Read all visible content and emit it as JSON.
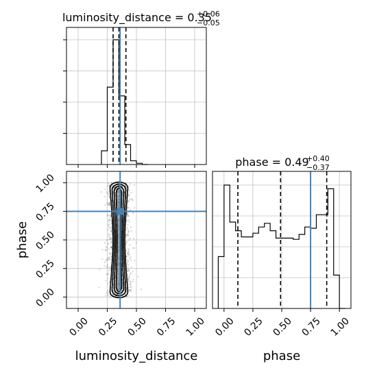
{
  "chart_data": [
    {
      "panel": "marginal-luminosity_distance",
      "type": "histogram",
      "title_param": "luminosity_distance",
      "title_value": "0.35",
      "title_plus": "+0.06",
      "title_minus": "−0.05",
      "xlim": [
        -0.1,
        1.1
      ],
      "bin_edges": [
        0.2,
        0.25,
        0.3,
        0.35,
        0.4,
        0.45,
        0.5,
        0.55,
        0.6
      ],
      "counts": [
        0.11,
        0.62,
        1.0,
        0.55,
        0.16,
        0.03,
        0.01,
        0.0
      ],
      "quantile_lines": [
        0.3,
        0.35,
        0.41
      ],
      "truth": 0.36,
      "grid": true
    },
    {
      "panel": "2d-luminosity_distance-phase",
      "type": "scatter",
      "xlabel": "luminosity_distance",
      "ylabel": "phase",
      "xlim": [
        -0.1,
        1.1
      ],
      "ylim": [
        -0.1,
        1.1
      ],
      "x_ticks": [
        "0.00",
        "0.25",
        "0.50",
        "0.75",
        "1.00"
      ],
      "y_ticks": [
        "0.00",
        "0.25",
        "0.50",
        "0.75",
        "1.00"
      ],
      "x_tick_values": [
        0,
        0.25,
        0.5,
        0.75,
        1.0
      ],
      "y_tick_values": [
        0,
        0.25,
        0.5,
        0.75,
        1.0
      ],
      "samples_center_x": 0.35,
      "samples_spread_x": 0.05,
      "truth_x": 0.36,
      "truth_y": 0.75,
      "grid": true
    },
    {
      "panel": "marginal-phase",
      "type": "histogram",
      "title_param": "phase",
      "title_value": "0.49",
      "title_plus": "+0.40",
      "title_minus": "−0.37",
      "xlabel": "phase",
      "xlim": [
        -0.1,
        1.1
      ],
      "x_ticks": [
        "0.00",
        "0.25",
        "0.50",
        "0.75",
        "1.00"
      ],
      "x_tick_values": [
        0,
        0.25,
        0.5,
        0.75,
        1.0
      ],
      "bin_edges": [
        -0.05,
        0.0,
        0.05,
        0.1,
        0.15,
        0.2,
        0.25,
        0.3,
        0.35,
        0.4,
        0.45,
        0.5,
        0.55,
        0.6,
        0.65,
        0.7,
        0.75,
        0.8,
        0.85,
        0.9,
        0.95,
        1.0,
        1.05
      ],
      "counts": [
        0.42,
        1.0,
        0.7,
        0.63,
        0.58,
        0.58,
        0.61,
        0.66,
        0.69,
        0.63,
        0.57,
        0.57,
        0.57,
        0.56,
        0.6,
        0.66,
        0.65,
        0.76,
        0.76,
        0.97,
        0.27,
        0.0
      ],
      "quantile_lines": [
        0.12,
        0.49,
        0.89
      ],
      "truth": 0.75,
      "grid": true
    }
  ],
  "colors": {
    "truth": "#4682b4",
    "hist": "#000000",
    "grid": "#c0c0c0",
    "points": "#555555"
  }
}
